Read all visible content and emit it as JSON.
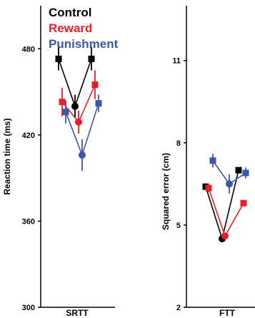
{
  "colors": {
    "control": "#000000",
    "reward": "#e8202a",
    "punishment": "#3a56a8"
  },
  "legend": {
    "entries": [
      {
        "label": "Control",
        "color": "#000000"
      },
      {
        "label": "Reward",
        "color": "#e8202a"
      },
      {
        "label": "Punishment",
        "color": "#3a56a8"
      }
    ],
    "placement": "top-left"
  },
  "chart_data": [
    {
      "type": "line",
      "xlabel": "SRTT",
      "ylabel": "Reaction time (ms)",
      "ylim": [
        300,
        510
      ],
      "yticks": [
        300,
        360,
        420,
        480
      ],
      "x": [
        1,
        2,
        3
      ],
      "series": [
        {
          "name": "Control",
          "color": "#000000",
          "marker": "mixed",
          "values": [
            473,
            440,
            473
          ],
          "errors": [
            8,
            8,
            8
          ],
          "markers": [
            "square",
            "circle",
            "square"
          ]
        },
        {
          "name": "Reward",
          "color": "#e8202a",
          "marker": "mixed",
          "values": [
            443,
            429,
            455
          ],
          "errors": [
            10,
            8,
            10
          ],
          "markers": [
            "square",
            "circle",
            "square"
          ]
        },
        {
          "name": "Punishment",
          "color": "#3a56a8",
          "marker": "mixed",
          "values": [
            436,
            406,
            442
          ],
          "errors": [
            8,
            11,
            6
          ],
          "markers": [
            "square",
            "circle",
            "square"
          ]
        }
      ]
    },
    {
      "type": "line",
      "xlabel": "FTT",
      "ylabel": "Squared error (cm)",
      "ylim": [
        2,
        13
      ],
      "yticks": [
        2,
        5,
        8,
        11
      ],
      "x": [
        1,
        2,
        3
      ],
      "series": [
        {
          "name": "Control",
          "color": "#000000",
          "marker": "mixed",
          "values": [
            6.4,
            4.5,
            7.0
          ],
          "errors": [
            0.1,
            0.1,
            0.1
          ],
          "markers": [
            "square",
            "circle",
            "square"
          ]
        },
        {
          "name": "Reward",
          "color": "#e8202a",
          "marker": "mixed",
          "values": [
            6.35,
            4.6,
            5.8
          ],
          "errors": [
            0.15,
            0.1,
            0.1
          ],
          "markers": [
            "square",
            "circle",
            "square"
          ]
        },
        {
          "name": "Punishment",
          "color": "#3a56a8",
          "marker": "mixed",
          "values": [
            7.35,
            6.5,
            6.9
          ],
          "errors": [
            0.25,
            0.35,
            0.2
          ],
          "markers": [
            "square",
            "circle",
            "square"
          ]
        }
      ]
    }
  ]
}
